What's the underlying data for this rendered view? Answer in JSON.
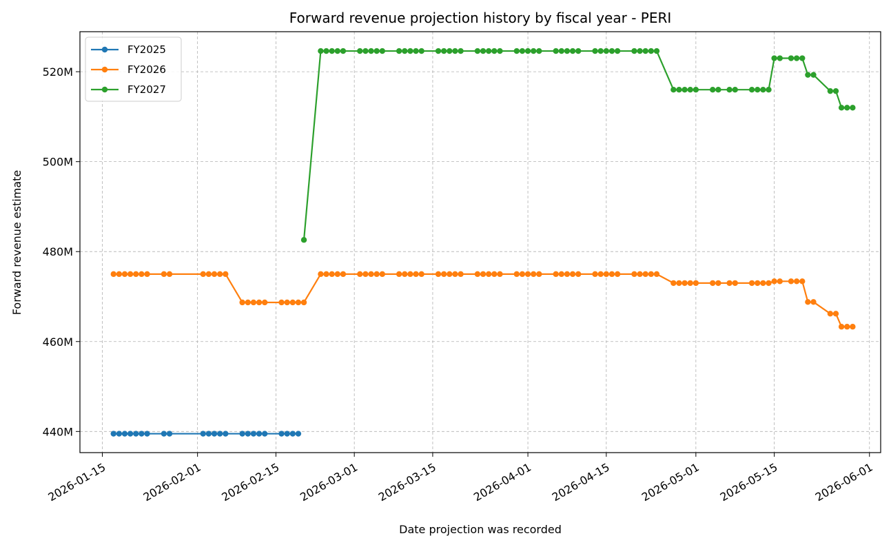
{
  "chart_data": {
    "type": "line",
    "title": "Forward revenue projection history by fiscal year - PERI",
    "xlabel": "Date projection was recorded",
    "ylabel": "Forward revenue estimate",
    "x_axis_type": "date",
    "xlim": [
      "2026-01-11",
      "2026-06-03"
    ],
    "ylim": [
      435.3,
      528.9
    ],
    "x_ticks": [
      "2026-01-15",
      "2026-02-01",
      "2026-02-15",
      "2026-03-01",
      "2026-03-15",
      "2026-04-01",
      "2026-04-15",
      "2026-05-01",
      "2026-05-15",
      "2026-06-01"
    ],
    "y_ticks": [
      440,
      460,
      480,
      500,
      520
    ],
    "y_tick_labels": [
      "440M",
      "460M",
      "480M",
      "500M",
      "520M"
    ],
    "grid": true,
    "legend_position": "top-left",
    "series": [
      {
        "name": "FY2025",
        "color": "#1f77b4",
        "points": [
          [
            "2026-01-17",
            439.5
          ],
          [
            "2026-01-18",
            439.5
          ],
          [
            "2026-01-19",
            439.5
          ],
          [
            "2026-01-20",
            439.5
          ],
          [
            "2026-01-21",
            439.5
          ],
          [
            "2026-01-22",
            439.5
          ],
          [
            "2026-01-23",
            439.5
          ],
          [
            "2026-01-26",
            439.5
          ],
          [
            "2026-01-27",
            439.5
          ],
          [
            "2026-02-02",
            439.5
          ],
          [
            "2026-02-03",
            439.5
          ],
          [
            "2026-02-04",
            439.5
          ],
          [
            "2026-02-05",
            439.5
          ],
          [
            "2026-02-06",
            439.5
          ],
          [
            "2026-02-09",
            439.5
          ],
          [
            "2026-02-10",
            439.5
          ],
          [
            "2026-02-11",
            439.5
          ],
          [
            "2026-02-12",
            439.5
          ],
          [
            "2026-02-13",
            439.5
          ],
          [
            "2026-02-16",
            439.5
          ],
          [
            "2026-02-17",
            439.5
          ],
          [
            "2026-02-18",
            439.5
          ],
          [
            "2026-02-19",
            439.5
          ]
        ]
      },
      {
        "name": "FY2026",
        "color": "#ff7f0e",
        "points": [
          [
            "2026-01-17",
            475.0
          ],
          [
            "2026-01-18",
            475.0
          ],
          [
            "2026-01-19",
            475.0
          ],
          [
            "2026-01-20",
            475.0
          ],
          [
            "2026-01-21",
            475.0
          ],
          [
            "2026-01-22",
            475.0
          ],
          [
            "2026-01-23",
            475.0
          ],
          [
            "2026-01-26",
            475.0
          ],
          [
            "2026-01-27",
            475.0
          ],
          [
            "2026-02-02",
            475.0
          ],
          [
            "2026-02-03",
            475.0
          ],
          [
            "2026-02-04",
            475.0
          ],
          [
            "2026-02-05",
            475.0
          ],
          [
            "2026-02-06",
            475.0
          ],
          [
            "2026-02-09",
            468.7
          ],
          [
            "2026-02-10",
            468.7
          ],
          [
            "2026-02-11",
            468.7
          ],
          [
            "2026-02-12",
            468.7
          ],
          [
            "2026-02-13",
            468.7
          ],
          [
            "2026-02-16",
            468.7
          ],
          [
            "2026-02-17",
            468.7
          ],
          [
            "2026-02-18",
            468.7
          ],
          [
            "2026-02-19",
            468.7
          ],
          [
            "2026-02-20",
            468.7
          ],
          [
            "2026-02-23",
            475.0
          ],
          [
            "2026-02-24",
            475.0
          ],
          [
            "2026-02-25",
            475.0
          ],
          [
            "2026-02-26",
            475.0
          ],
          [
            "2026-02-27",
            475.0
          ],
          [
            "2026-03-02",
            475.0
          ],
          [
            "2026-03-03",
            475.0
          ],
          [
            "2026-03-04",
            475.0
          ],
          [
            "2026-03-05",
            475.0
          ],
          [
            "2026-03-06",
            475.0
          ],
          [
            "2026-03-09",
            475.0
          ],
          [
            "2026-03-10",
            475.0
          ],
          [
            "2026-03-11",
            475.0
          ],
          [
            "2026-03-12",
            475.0
          ],
          [
            "2026-03-13",
            475.0
          ],
          [
            "2026-03-16",
            475.0
          ],
          [
            "2026-03-17",
            475.0
          ],
          [
            "2026-03-18",
            475.0
          ],
          [
            "2026-03-19",
            475.0
          ],
          [
            "2026-03-20",
            475.0
          ],
          [
            "2026-03-23",
            475.0
          ],
          [
            "2026-03-24",
            475.0
          ],
          [
            "2026-03-25",
            475.0
          ],
          [
            "2026-03-26",
            475.0
          ],
          [
            "2026-03-27",
            475.0
          ],
          [
            "2026-03-30",
            475.0
          ],
          [
            "2026-03-31",
            475.0
          ],
          [
            "2026-04-01",
            475.0
          ],
          [
            "2026-04-02",
            475.0
          ],
          [
            "2026-04-03",
            475.0
          ],
          [
            "2026-04-06",
            475.0
          ],
          [
            "2026-04-07",
            475.0
          ],
          [
            "2026-04-08",
            475.0
          ],
          [
            "2026-04-09",
            475.0
          ],
          [
            "2026-04-10",
            475.0
          ],
          [
            "2026-04-13",
            475.0
          ],
          [
            "2026-04-14",
            475.0
          ],
          [
            "2026-04-15",
            475.0
          ],
          [
            "2026-04-16",
            475.0
          ],
          [
            "2026-04-17",
            475.0
          ],
          [
            "2026-04-20",
            475.0
          ],
          [
            "2026-04-21",
            475.0
          ],
          [
            "2026-04-22",
            475.0
          ],
          [
            "2026-04-23",
            475.0
          ],
          [
            "2026-04-24",
            475.0
          ],
          [
            "2026-04-27",
            473.0
          ],
          [
            "2026-04-28",
            473.0
          ],
          [
            "2026-04-29",
            473.0
          ],
          [
            "2026-04-30",
            473.0
          ],
          [
            "2026-05-01",
            473.0
          ],
          [
            "2026-05-04",
            473.0
          ],
          [
            "2026-05-05",
            473.0
          ],
          [
            "2026-05-07",
            473.0
          ],
          [
            "2026-05-08",
            473.0
          ],
          [
            "2026-05-11",
            473.0
          ],
          [
            "2026-05-12",
            473.0
          ],
          [
            "2026-05-13",
            473.0
          ],
          [
            "2026-05-14",
            473.0
          ],
          [
            "2026-05-15",
            473.4
          ],
          [
            "2026-05-16",
            473.4
          ],
          [
            "2026-05-18",
            473.4
          ],
          [
            "2026-05-19",
            473.4
          ],
          [
            "2026-05-20",
            473.4
          ],
          [
            "2026-05-21",
            468.8
          ],
          [
            "2026-05-22",
            468.8
          ],
          [
            "2026-05-25",
            466.2
          ],
          [
            "2026-05-26",
            466.2
          ],
          [
            "2026-05-27",
            463.3
          ],
          [
            "2026-05-28",
            463.3
          ],
          [
            "2026-05-29",
            463.3
          ]
        ]
      },
      {
        "name": "FY2027",
        "color": "#2ca02c",
        "points": [
          [
            "2026-02-20",
            482.6
          ],
          [
            "2026-02-23",
            524.6
          ],
          [
            "2026-02-24",
            524.6
          ],
          [
            "2026-02-25",
            524.6
          ],
          [
            "2026-02-26",
            524.6
          ],
          [
            "2026-02-27",
            524.6
          ],
          [
            "2026-03-02",
            524.6
          ],
          [
            "2026-03-03",
            524.6
          ],
          [
            "2026-03-04",
            524.6
          ],
          [
            "2026-03-05",
            524.6
          ],
          [
            "2026-03-06",
            524.6
          ],
          [
            "2026-03-09",
            524.6
          ],
          [
            "2026-03-10",
            524.6
          ],
          [
            "2026-03-11",
            524.6
          ],
          [
            "2026-03-12",
            524.6
          ],
          [
            "2026-03-13",
            524.6
          ],
          [
            "2026-03-16",
            524.6
          ],
          [
            "2026-03-17",
            524.6
          ],
          [
            "2026-03-18",
            524.6
          ],
          [
            "2026-03-19",
            524.6
          ],
          [
            "2026-03-20",
            524.6
          ],
          [
            "2026-03-23",
            524.6
          ],
          [
            "2026-03-24",
            524.6
          ],
          [
            "2026-03-25",
            524.6
          ],
          [
            "2026-03-26",
            524.6
          ],
          [
            "2026-03-27",
            524.6
          ],
          [
            "2026-03-30",
            524.6
          ],
          [
            "2026-03-31",
            524.6
          ],
          [
            "2026-04-01",
            524.6
          ],
          [
            "2026-04-02",
            524.6
          ],
          [
            "2026-04-03",
            524.6
          ],
          [
            "2026-04-06",
            524.6
          ],
          [
            "2026-04-07",
            524.6
          ],
          [
            "2026-04-08",
            524.6
          ],
          [
            "2026-04-09",
            524.6
          ],
          [
            "2026-04-10",
            524.6
          ],
          [
            "2026-04-13",
            524.6
          ],
          [
            "2026-04-14",
            524.6
          ],
          [
            "2026-04-15",
            524.6
          ],
          [
            "2026-04-16",
            524.6
          ],
          [
            "2026-04-17",
            524.6
          ],
          [
            "2026-04-20",
            524.6
          ],
          [
            "2026-04-21",
            524.6
          ],
          [
            "2026-04-22",
            524.6
          ],
          [
            "2026-04-23",
            524.6
          ],
          [
            "2026-04-24",
            524.6
          ],
          [
            "2026-04-27",
            516.0
          ],
          [
            "2026-04-28",
            516.0
          ],
          [
            "2026-04-29",
            516.0
          ],
          [
            "2026-04-30",
            516.0
          ],
          [
            "2026-05-01",
            516.0
          ],
          [
            "2026-05-04",
            516.0
          ],
          [
            "2026-05-05",
            516.0
          ],
          [
            "2026-05-07",
            516.0
          ],
          [
            "2026-05-08",
            516.0
          ],
          [
            "2026-05-11",
            516.0
          ],
          [
            "2026-05-12",
            516.0
          ],
          [
            "2026-05-13",
            516.0
          ],
          [
            "2026-05-14",
            516.0
          ],
          [
            "2026-05-15",
            523.0
          ],
          [
            "2026-05-16",
            523.0
          ],
          [
            "2026-05-18",
            523.0
          ],
          [
            "2026-05-19",
            523.0
          ],
          [
            "2026-05-20",
            523.0
          ],
          [
            "2026-05-21",
            519.3
          ],
          [
            "2026-05-22",
            519.3
          ],
          [
            "2026-05-25",
            515.7
          ],
          [
            "2026-05-26",
            515.7
          ],
          [
            "2026-05-27",
            512.0
          ],
          [
            "2026-05-28",
            512.0
          ],
          [
            "2026-05-29",
            512.0
          ]
        ]
      }
    ]
  }
}
